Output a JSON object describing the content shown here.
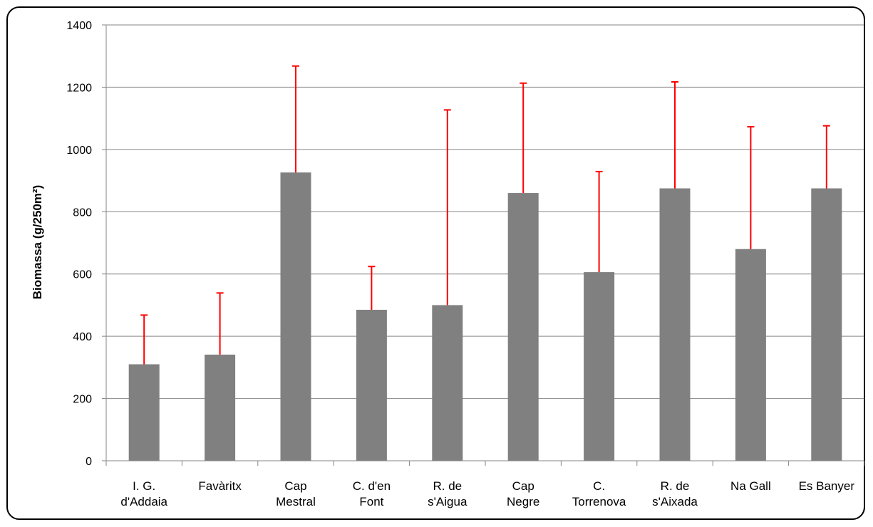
{
  "chart_data": {
    "type": "bar",
    "categories": [
      [
        "I. G.",
        "d'Addaia"
      ],
      [
        "Favàritx"
      ],
      [
        "Cap",
        "Mestral"
      ],
      [
        "C. d'en",
        "Font"
      ],
      [
        "R. de",
        "s'Aigua"
      ],
      [
        "Cap",
        "Negre"
      ],
      [
        "C.",
        "Torrenova"
      ],
      [
        "R. de",
        "s'Aixada"
      ],
      [
        "Na Gall"
      ],
      [
        "Es Banyer"
      ]
    ],
    "values": [
      310,
      341,
      926,
      485,
      500,
      860,
      606,
      875,
      680,
      875
    ],
    "error_upper": [
      468,
      539,
      1268,
      624,
      1127,
      1213,
      929,
      1217,
      1073,
      1076
    ],
    "title": "",
    "xlabel": "",
    "ylabel": "Biomassa (g/250m²)",
    "ylim": [
      0,
      1400
    ],
    "yticks": [
      0,
      200,
      400,
      600,
      800,
      1000,
      1200,
      1400
    ],
    "grid": true,
    "legend": "none",
    "bar_color": "#808080",
    "error_color": "#ff0000",
    "grid_color": "#868686"
  }
}
